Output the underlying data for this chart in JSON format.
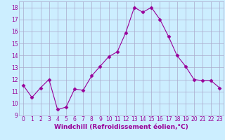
{
  "x": [
    0,
    1,
    2,
    3,
    4,
    5,
    6,
    7,
    8,
    9,
    10,
    11,
    12,
    13,
    14,
    15,
    16,
    17,
    18,
    19,
    20,
    21,
    22,
    23
  ],
  "y": [
    11.5,
    10.5,
    11.3,
    12.0,
    9.5,
    9.7,
    11.2,
    11.1,
    12.3,
    13.1,
    13.9,
    14.3,
    15.9,
    18.0,
    17.6,
    18.0,
    17.0,
    15.6,
    14.0,
    13.1,
    12.0,
    11.9,
    11.9,
    11.3
  ],
  "line_color": "#990099",
  "marker": "D",
  "marker_size": 2.5,
  "background_color": "#cceeff",
  "grid_color": "#aaaacc",
  "xlabel": "Windchill (Refroidissement éolien,°C)",
  "xlabel_color": "#990099",
  "xlim": [
    -0.5,
    23.5
  ],
  "ylim": [
    9,
    18.5
  ],
  "yticks": [
    9,
    10,
    11,
    12,
    13,
    14,
    15,
    16,
    17,
    18
  ],
  "xticks": [
    0,
    1,
    2,
    3,
    4,
    5,
    6,
    7,
    8,
    9,
    10,
    11,
    12,
    13,
    14,
    15,
    16,
    17,
    18,
    19,
    20,
    21,
    22,
    23
  ],
  "tick_color": "#990099",
  "tick_fontsize": 5.5,
  "xlabel_fontsize": 6.5,
  "linewidth": 0.8
}
